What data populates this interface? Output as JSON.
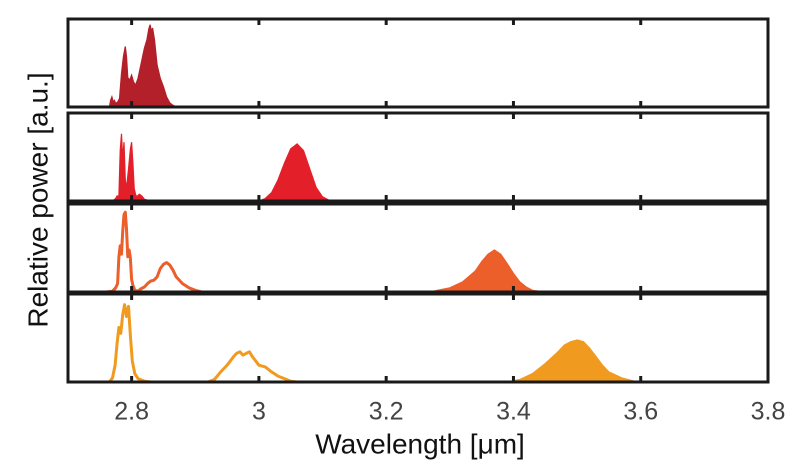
{
  "chart_data": {
    "type": "area",
    "layout": "4 vertically stacked panels sharing the x axis",
    "xlabel": "Wavelength [μm]",
    "ylabel": "Relative power [a.u.]",
    "xlim": [
      2.7,
      3.8
    ],
    "xticks": [
      2.8,
      3,
      3.2,
      3.4,
      3.6,
      3.8
    ],
    "xtick_labels": [
      "2.8",
      "3",
      "3.2",
      "3.4",
      "3.6",
      "3.8"
    ],
    "ylim": [
      0,
      1
    ],
    "grid": false,
    "legend": "none",
    "panels": [
      {
        "color": "#b3202a",
        "style": "filled",
        "points": [
          [
            2.75,
            0
          ],
          [
            2.765,
            0
          ],
          [
            2.767,
            0.08
          ],
          [
            2.769,
            0.12
          ],
          [
            2.771,
            0.06
          ],
          [
            2.773,
            0.08
          ],
          [
            2.775,
            0.04
          ],
          [
            2.778,
            0.06
          ],
          [
            2.781,
            0.1
          ],
          [
            2.784,
            0.4
          ],
          [
            2.787,
            0.6
          ],
          [
            2.79,
            0.72
          ],
          [
            2.792,
            0.6
          ],
          [
            2.794,
            0.35
          ],
          [
            2.797,
            0.32
          ],
          [
            2.8,
            0.38
          ],
          [
            2.803,
            0.3
          ],
          [
            2.806,
            0.26
          ],
          [
            2.81,
            0.34
          ],
          [
            2.815,
            0.52
          ],
          [
            2.82,
            0.7
          ],
          [
            2.824,
            0.8
          ],
          [
            2.827,
            0.93
          ],
          [
            2.829,
            0.98
          ],
          [
            2.831,
            0.9
          ],
          [
            2.833,
            0.94
          ],
          [
            2.836,
            0.8
          ],
          [
            2.84,
            0.5
          ],
          [
            2.845,
            0.34
          ],
          [
            2.85,
            0.24
          ],
          [
            2.855,
            0.12
          ],
          [
            2.86,
            0.05
          ],
          [
            2.865,
            0.02
          ],
          [
            2.87,
            0
          ]
        ]
      },
      {
        "color": "#e3202a",
        "style": "filled",
        "points": [
          [
            2.75,
            0
          ],
          [
            2.77,
            0
          ],
          [
            2.775,
            0.03
          ],
          [
            2.777,
            0.06
          ],
          [
            2.78,
            0.06
          ],
          [
            2.782,
            0.6
          ],
          [
            2.784,
            0.8
          ],
          [
            2.786,
            0.5
          ],
          [
            2.788,
            0.7
          ],
          [
            2.79,
            0.25
          ],
          [
            2.792,
            0.15
          ],
          [
            2.795,
            0.38
          ],
          [
            2.798,
            0.62
          ],
          [
            2.8,
            0.7
          ],
          [
            2.802,
            0.45
          ],
          [
            2.804,
            0.15
          ],
          [
            2.806,
            0.08
          ],
          [
            2.808,
            0.05
          ],
          [
            2.812,
            0.08
          ],
          [
            2.816,
            0.06
          ],
          [
            2.82,
            0.02
          ],
          [
            2.83,
            0
          ],
          [
            3.0,
            0
          ],
          [
            3.01,
            0.03
          ],
          [
            3.02,
            0.1
          ],
          [
            3.03,
            0.25
          ],
          [
            3.04,
            0.45
          ],
          [
            3.05,
            0.62
          ],
          [
            3.06,
            0.68
          ],
          [
            3.07,
            0.6
          ],
          [
            3.08,
            0.38
          ],
          [
            3.09,
            0.16
          ],
          [
            3.1,
            0.05
          ],
          [
            3.11,
            0.01
          ],
          [
            3.12,
            0
          ]
        ]
      },
      {
        "color": "#ec5e2a",
        "style": "lines-then-filled",
        "points": [
          [
            2.76,
            0
          ],
          [
            2.77,
            0.01
          ],
          [
            2.775,
            0.05
          ],
          [
            2.778,
            0.1
          ],
          [
            2.78,
            0.42
          ],
          [
            2.782,
            0.55
          ],
          [
            2.784,
            0.45
          ],
          [
            2.786,
            0.72
          ],
          [
            2.788,
            0.92
          ],
          [
            2.79,
            0.95
          ],
          [
            2.792,
            0.75
          ],
          [
            2.794,
            0.42
          ],
          [
            2.796,
            0.5
          ],
          [
            2.798,
            0.4
          ],
          [
            2.8,
            0.15
          ],
          [
            2.802,
            0.08
          ],
          [
            2.805,
            0.02
          ],
          [
            2.81,
            0.01
          ],
          [
            2.815,
            0.04
          ],
          [
            2.82,
            0.06
          ],
          [
            2.825,
            0.1
          ],
          [
            2.83,
            0.13
          ],
          [
            2.835,
            0.14
          ],
          [
            2.84,
            0.18
          ],
          [
            2.845,
            0.28
          ],
          [
            2.85,
            0.33
          ],
          [
            2.855,
            0.35
          ],
          [
            2.86,
            0.32
          ],
          [
            2.865,
            0.26
          ],
          [
            2.87,
            0.18
          ],
          [
            2.88,
            0.1
          ],
          [
            2.89,
            0.05
          ],
          [
            2.9,
            0.02
          ],
          [
            2.91,
            0
          ],
          [
            3.27,
            0
          ],
          [
            3.28,
            0.02
          ],
          [
            3.3,
            0.05
          ],
          [
            3.32,
            0.12
          ],
          [
            3.34,
            0.25
          ],
          [
            3.35,
            0.36
          ],
          [
            3.36,
            0.45
          ],
          [
            3.37,
            0.5
          ],
          [
            3.38,
            0.45
          ],
          [
            3.39,
            0.34
          ],
          [
            3.4,
            0.22
          ],
          [
            3.41,
            0.12
          ],
          [
            3.42,
            0.06
          ],
          [
            3.43,
            0.02
          ],
          [
            3.45,
            0
          ]
        ]
      },
      {
        "color": "#f19a20",
        "style": "lines-then-filled",
        "points": [
          [
            2.75,
            0
          ],
          [
            2.765,
            0
          ],
          [
            2.77,
            0.05
          ],
          [
            2.774,
            0.2
          ],
          [
            2.777,
            0.45
          ],
          [
            2.78,
            0.65
          ],
          [
            2.783,
            0.58
          ],
          [
            2.786,
            0.8
          ],
          [
            2.789,
            0.92
          ],
          [
            2.792,
            0.78
          ],
          [
            2.795,
            0.9
          ],
          [
            2.798,
            0.55
          ],
          [
            2.801,
            0.25
          ],
          [
            2.805,
            0.1
          ],
          [
            2.81,
            0.04
          ],
          [
            2.82,
            0.01
          ],
          [
            2.83,
            0
          ],
          [
            2.92,
            0
          ],
          [
            2.93,
            0.03
          ],
          [
            2.94,
            0.12
          ],
          [
            2.95,
            0.2
          ],
          [
            2.96,
            0.3
          ],
          [
            2.965,
            0.34
          ],
          [
            2.97,
            0.36
          ],
          [
            2.975,
            0.32
          ],
          [
            2.98,
            0.34
          ],
          [
            2.985,
            0.36
          ],
          [
            2.99,
            0.3
          ],
          [
            3.0,
            0.2
          ],
          [
            3.01,
            0.18
          ],
          [
            3.02,
            0.12
          ],
          [
            3.03,
            0.07
          ],
          [
            3.04,
            0.04
          ],
          [
            3.05,
            0.01
          ],
          [
            3.06,
            0
          ],
          [
            3.39,
            0
          ],
          [
            3.41,
            0.03
          ],
          [
            3.43,
            0.1
          ],
          [
            3.45,
            0.22
          ],
          [
            3.47,
            0.36
          ],
          [
            3.48,
            0.44
          ],
          [
            3.49,
            0.48
          ],
          [
            3.5,
            0.5
          ],
          [
            3.51,
            0.48
          ],
          [
            3.52,
            0.4
          ],
          [
            3.53,
            0.3
          ],
          [
            3.54,
            0.2
          ],
          [
            3.55,
            0.12
          ],
          [
            3.57,
            0.05
          ],
          [
            3.59,
            0.01
          ],
          [
            3.6,
            0
          ]
        ]
      }
    ]
  }
}
